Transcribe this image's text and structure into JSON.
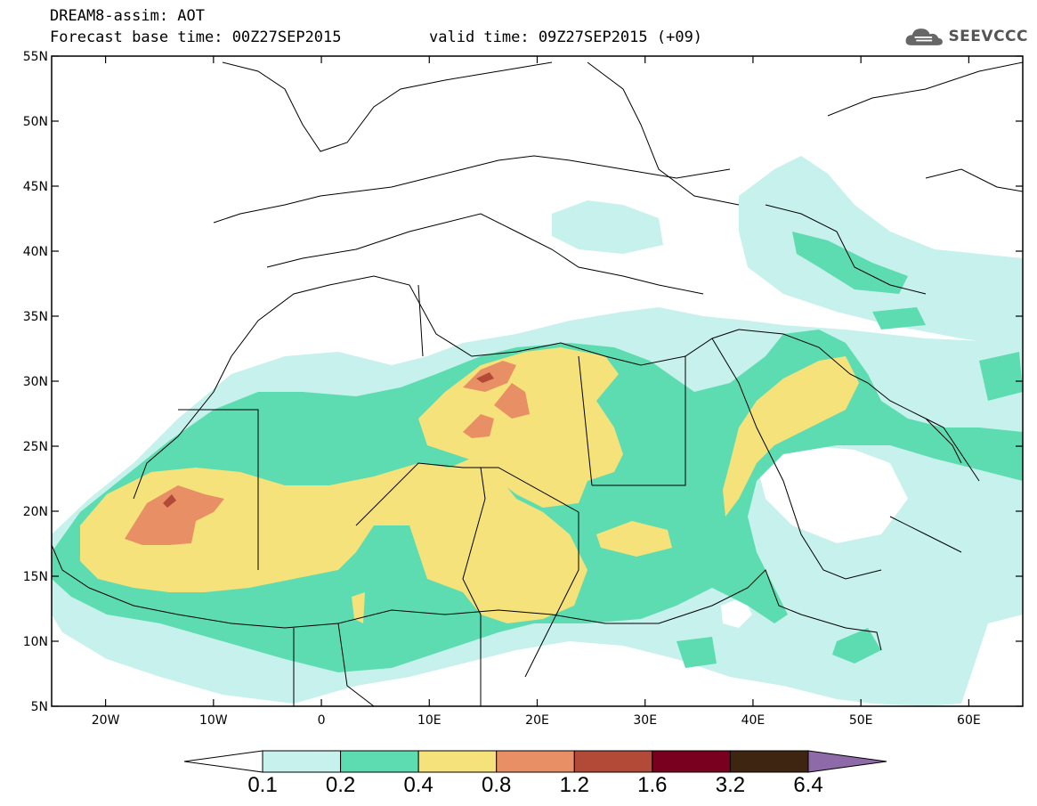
{
  "header": {
    "title_line1": "DREAM8-assim: AOT",
    "title_line2": "Forecast base time: 00Z27SEP2015",
    "valid_time": "valid time: 09Z27SEP2015 (+09)",
    "logo_text": "SEEVCCC"
  },
  "map": {
    "lon_range": [
      -25,
      65
    ],
    "lat_range": [
      5,
      55
    ],
    "lat_ticks": [
      "55N",
      "50N",
      "45N",
      "40N",
      "35N",
      "30N",
      "25N",
      "20N",
      "15N",
      "10N",
      "5N"
    ],
    "lon_ticks": [
      "20W",
      "10W",
      "0",
      "10E",
      "20E",
      "30E",
      "40E",
      "50E",
      "60E"
    ]
  },
  "colorbar": {
    "colors": [
      "#ffffff",
      "#c6f1ec",
      "#5ddcb1",
      "#f5e27a",
      "#e88f66",
      "#b24a37",
      "#7a0020",
      "#3e2512",
      "#8e6aa8"
    ],
    "labels": [
      "0.1",
      "0.2",
      "0.4",
      "0.8",
      "1.2",
      "1.6",
      "3.2",
      "6.4"
    ]
  }
}
